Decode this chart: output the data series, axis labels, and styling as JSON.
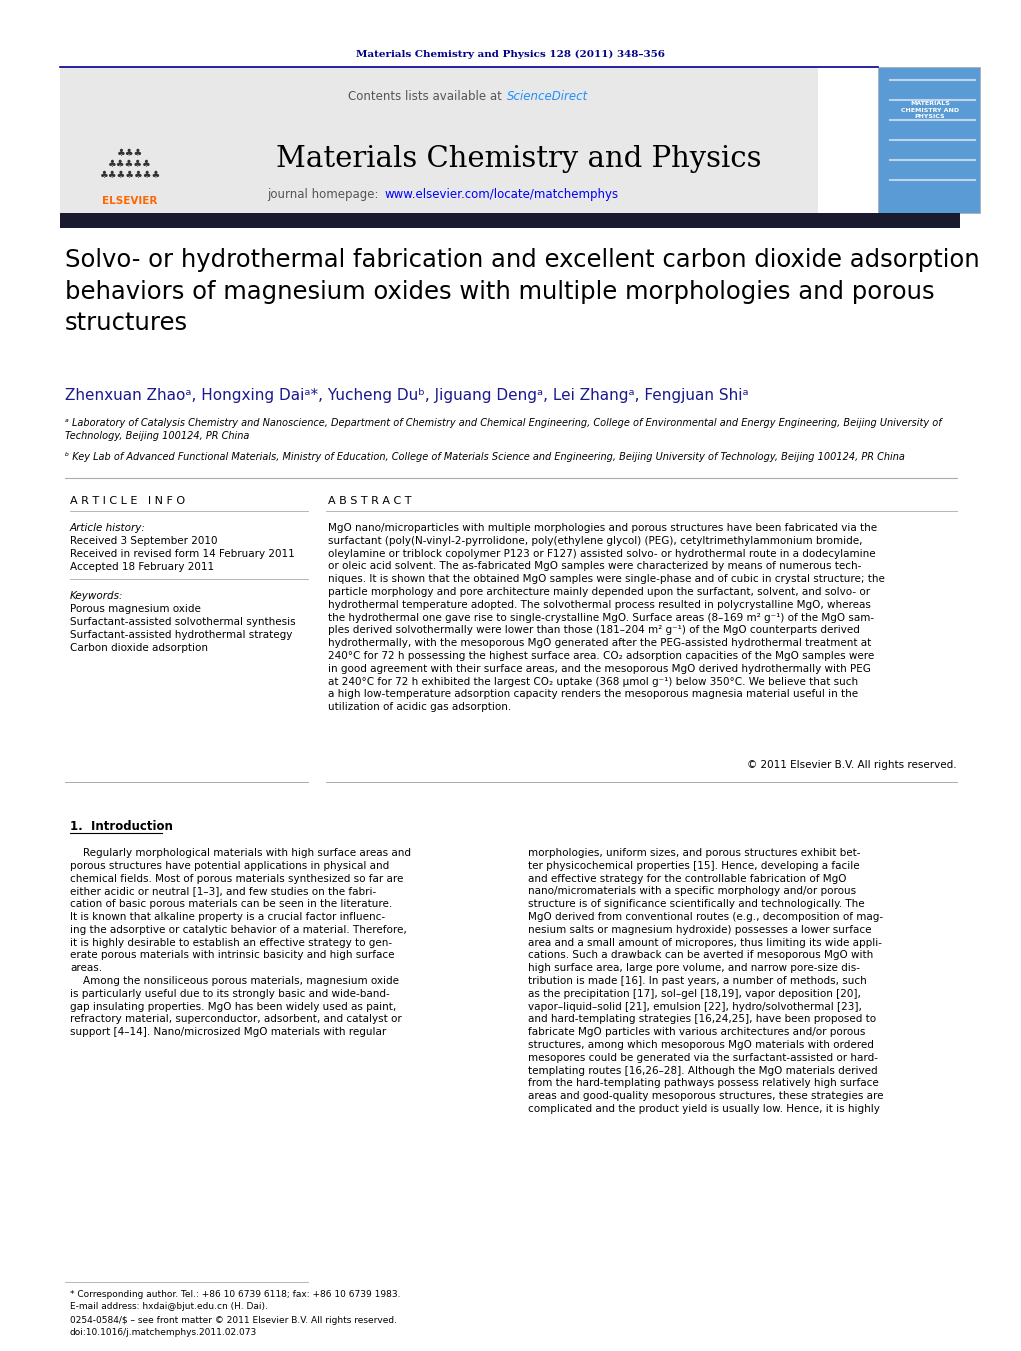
{
  "page_width": 10.21,
  "page_height": 13.51,
  "bg_color": "#ffffff",
  "top_citation": "Materials Chemistry and Physics 128 (2011) 348–356",
  "top_citation_color": "#00008B",
  "journal_name": "Materials Chemistry and Physics",
  "homepage_url_color": "#0000FF",
  "contents_text": "Contents lists available at ",
  "sciencedirect_text": "ScienceDirect",
  "sciencedirect_color": "#1E90FF",
  "header_bg": "#E8E8E8",
  "dark_bar_color": "#1a1a2e",
  "article_info_header": "A R T I C L E   I N F O",
  "abstract_header": "A B S T R A C T",
  "article_history_label": "Article history:",
  "received1": "Received 3 September 2010",
  "received2": "Received in revised form 14 February 2011",
  "accepted": "Accepted 18 February 2011",
  "keywords_label": "Keywords:",
  "keywords": [
    "Porous magnesium oxide",
    "Surfactant-assisted solvothermal synthesis",
    "Surfactant-assisted hydrothermal strategy",
    "Carbon dioxide adsorption"
  ],
  "abstract_text": "MgO nano/microparticles with multiple morphologies and porous structures have been fabricated via the\nsurfactant (poly(N-vinyl-2-pyrrolidone, poly(ethylene glycol) (PEG), cetyltrimethylammonium bromide,\noleylamine or triblock copolymer P123 or F127) assisted solvo- or hydrothermal route in a dodecylamine\nor oleic acid solvent. The as-fabricated MgO samples were characterized by means of numerous tech-\nniques. It is shown that the obtained MgO samples were single-phase and of cubic in crystal structure; the\nparticle morphology and pore architecture mainly depended upon the surfactant, solvent, and solvo- or\nhydrothermal temperature adopted. The solvothermal process resulted in polycrystalline MgO, whereas\nthe hydrothermal one gave rise to single-crystalline MgO. Surface areas (8–169 m² g⁻¹) of the MgO sam-\nples derived solvothermally were lower than those (181–204 m² g⁻¹) of the MgO counterparts derived\nhydrothermally, with the mesoporous MgO generated after the PEG-assisted hydrothermal treatment at\n240°C for 72 h possessing the highest surface area. CO₂ adsorption capacities of the MgO samples were\nin good agreement with their surface areas, and the mesoporous MgO derived hydrothermally with PEG\nat 240°C for 72 h exhibited the largest CO₂ uptake (368 μmol g⁻¹) below 350°C. We believe that such\na high low-temperature adsorption capacity renders the mesoporous magnesia material useful in the\nutilization of acidic gas adsorption.",
  "copyright": "© 2011 Elsevier B.V. All rights reserved.",
  "section1_title": "1.  Introduction",
  "intro_col1": "    Regularly morphological materials with high surface areas and\nporous structures have potential applications in physical and\nchemical fields. Most of porous materials synthesized so far are\neither acidic or neutral [1–3], and few studies on the fabri-\ncation of basic porous materials can be seen in the literature.\nIt is known that alkaline property is a crucial factor influenc-\ning the adsorptive or catalytic behavior of a material. Therefore,\nit is highly desirable to establish an effective strategy to gen-\nerate porous materials with intrinsic basicity and high surface\nareas.\n    Among the nonsiliceous porous materials, magnesium oxide\nis particularly useful due to its strongly basic and wide-band-\ngap insulating properties. MgO has been widely used as paint,\nrefractory material, superconductor, adsorbent, and catalyst or\nsupport [4–14]. Nano/microsized MgO materials with regular",
  "intro_col2": "morphologies, uniform sizes, and porous structures exhibit bet-\nter physicochemical properties [15]. Hence, developing a facile\nand effective strategy for the controllable fabrication of MgO\nnano/micromaterials with a specific morphology and/or porous\nstructure is of significance scientifically and technologically. The\nMgO derived from conventional routes (e.g., decomposition of mag-\nnesium salts or magnesium hydroxide) possesses a lower surface\narea and a small amount of micropores, thus limiting its wide appli-\ncations. Such a drawback can be averted if mesoporous MgO with\nhigh surface area, large pore volume, and narrow pore-size dis-\ntribution is made [16]. In past years, a number of methods, such\nas the precipitation [17], sol–gel [18,19], vapor deposition [20],\nvapor–liquid–solid [21], emulsion [22], hydro/solvothermal [23],\nand hard-templating strategies [16,24,25], have been proposed to\nfabricate MgO particles with various architectures and/or porous\nstructures, among which mesoporous MgO materials with ordered\nmesopores could be generated via the surfactant-assisted or hard-\ntemplating routes [16,26–28]. Although the MgO materials derived\nfrom the hard-templating pathways possess relatively high surface\nareas and good-quality mesoporous structures, these strategies are\ncomplicated and the product yield is usually low. Hence, it is highly",
  "footer_text1": "* Corresponding author. Tel.: +86 10 6739 6118; fax: +86 10 6739 1983.",
  "footer_text2": "E-mail address: hxdai@bjut.edu.cn (H. Dai).",
  "footer_text3": "0254-0584/$ – see front matter © 2011 Elsevier B.V. All rights reserved.",
  "footer_text4": "doi:10.1016/j.matchemphys.2011.02.073"
}
